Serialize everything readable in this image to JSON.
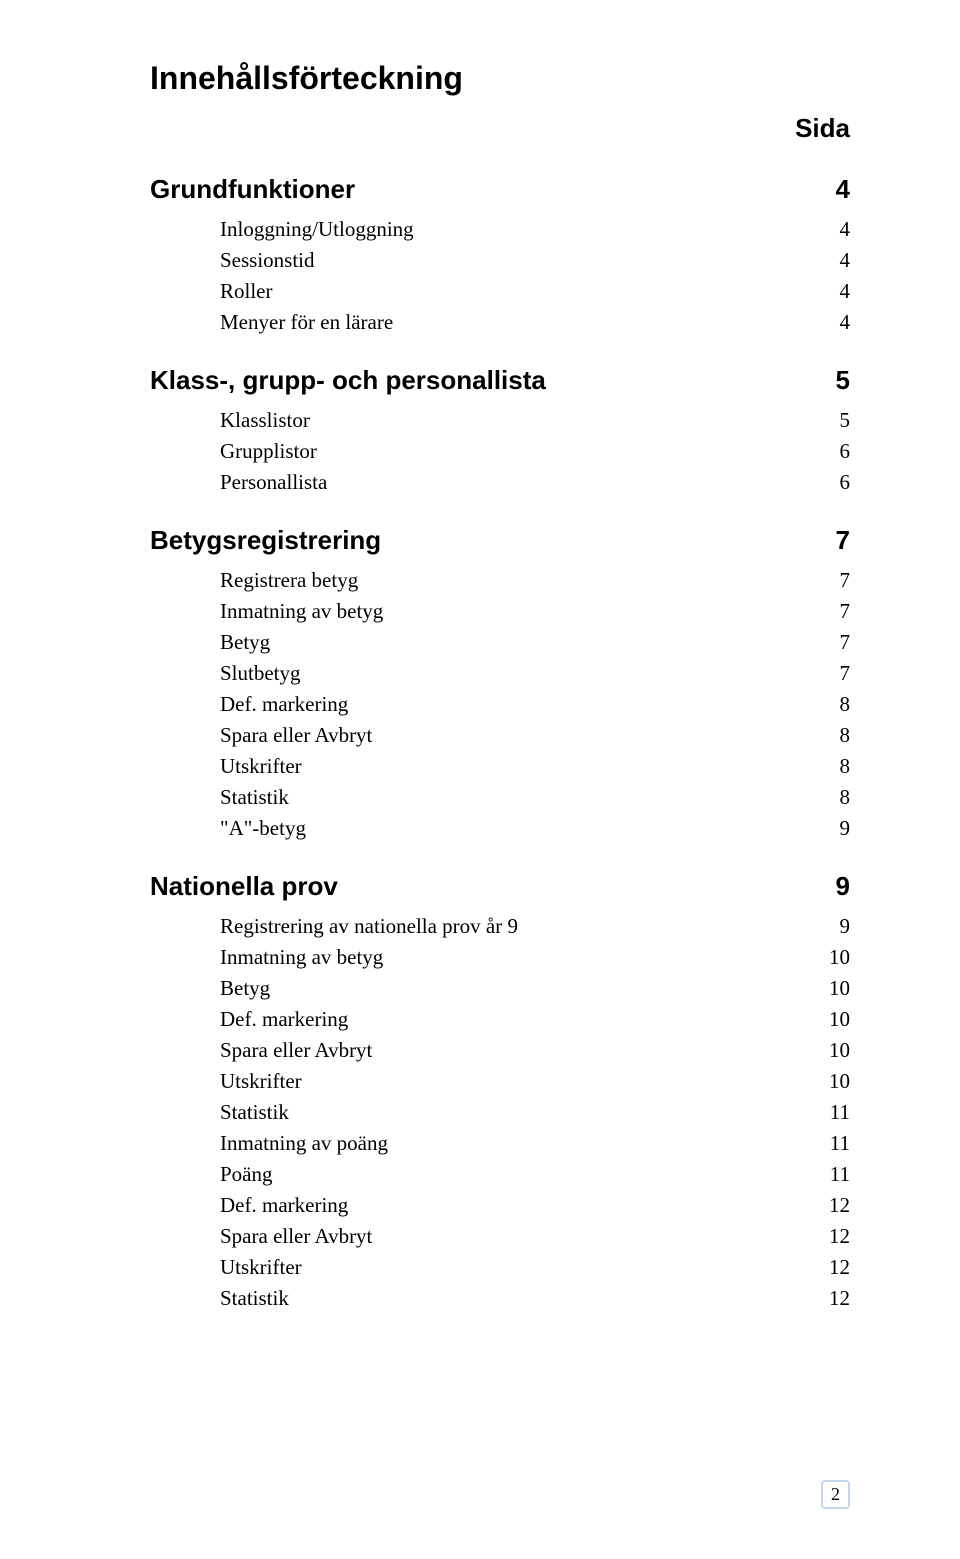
{
  "title": "Innehållsförteckning",
  "page_label": "Sida",
  "colors": {
    "background": "#ffffff",
    "text": "#000000",
    "footer_border": "#c2d5ea"
  },
  "typography": {
    "heading_family": "sans-serif",
    "body_family": "serif",
    "h1_size_pt": 24,
    "h2_size_pt": 19,
    "sub_size_pt": 15
  },
  "sections": [
    {
      "title": "Grundfunktioner",
      "page": "4",
      "items": [
        {
          "label": "Inloggning/Utloggning",
          "page": "4"
        },
        {
          "label": "Sessionstid",
          "page": "4"
        },
        {
          "label": "Roller",
          "page": "4"
        },
        {
          "label": "Menyer för en lärare",
          "page": "4"
        }
      ]
    },
    {
      "title": "Klass-, grupp- och personallista",
      "page": "5",
      "items": [
        {
          "label": "Klasslistor",
          "page": "5"
        },
        {
          "label": "Grupplistor",
          "page": "6"
        },
        {
          "label": "Personallista",
          "page": "6"
        }
      ]
    },
    {
      "title": "Betygsregistrering",
      "page": "7",
      "items": [
        {
          "label": "Registrera betyg",
          "page": "7"
        },
        {
          "label": "Inmatning av betyg",
          "page": "7"
        },
        {
          "label": "Betyg",
          "page": "7"
        },
        {
          "label": "Slutbetyg",
          "page": "7"
        },
        {
          "label": "Def. markering",
          "page": "8"
        },
        {
          "label": "Spara eller Avbryt",
          "page": "8"
        },
        {
          "label": "Utskrifter",
          "page": "8"
        },
        {
          "label": "Statistik",
          "page": "8"
        },
        {
          "label": "\"A\"-betyg",
          "page": "9"
        }
      ]
    },
    {
      "title": "Nationella prov",
      "page": "9",
      "items": [
        {
          "label": "Registrering av nationella prov år 9",
          "page": "9"
        },
        {
          "label": "Inmatning av betyg",
          "page": "10"
        },
        {
          "label": "Betyg",
          "page": "10"
        },
        {
          "label": "Def. markering",
          "page": "10"
        },
        {
          "label": "Spara eller Avbryt",
          "page": "10"
        },
        {
          "label": "Utskrifter",
          "page": "10"
        },
        {
          "label": "Statistik",
          "page": "11"
        },
        {
          "label": "Inmatning av poäng",
          "page": "11"
        },
        {
          "label": "Poäng",
          "page": "11"
        },
        {
          "label": "Def. markering",
          "page": "12"
        },
        {
          "label": "Spara eller Avbryt",
          "page": "12"
        },
        {
          "label": "Utskrifter",
          "page": "12"
        },
        {
          "label": "Statistik",
          "page": "12"
        }
      ]
    }
  ],
  "footer_page_number": "2"
}
